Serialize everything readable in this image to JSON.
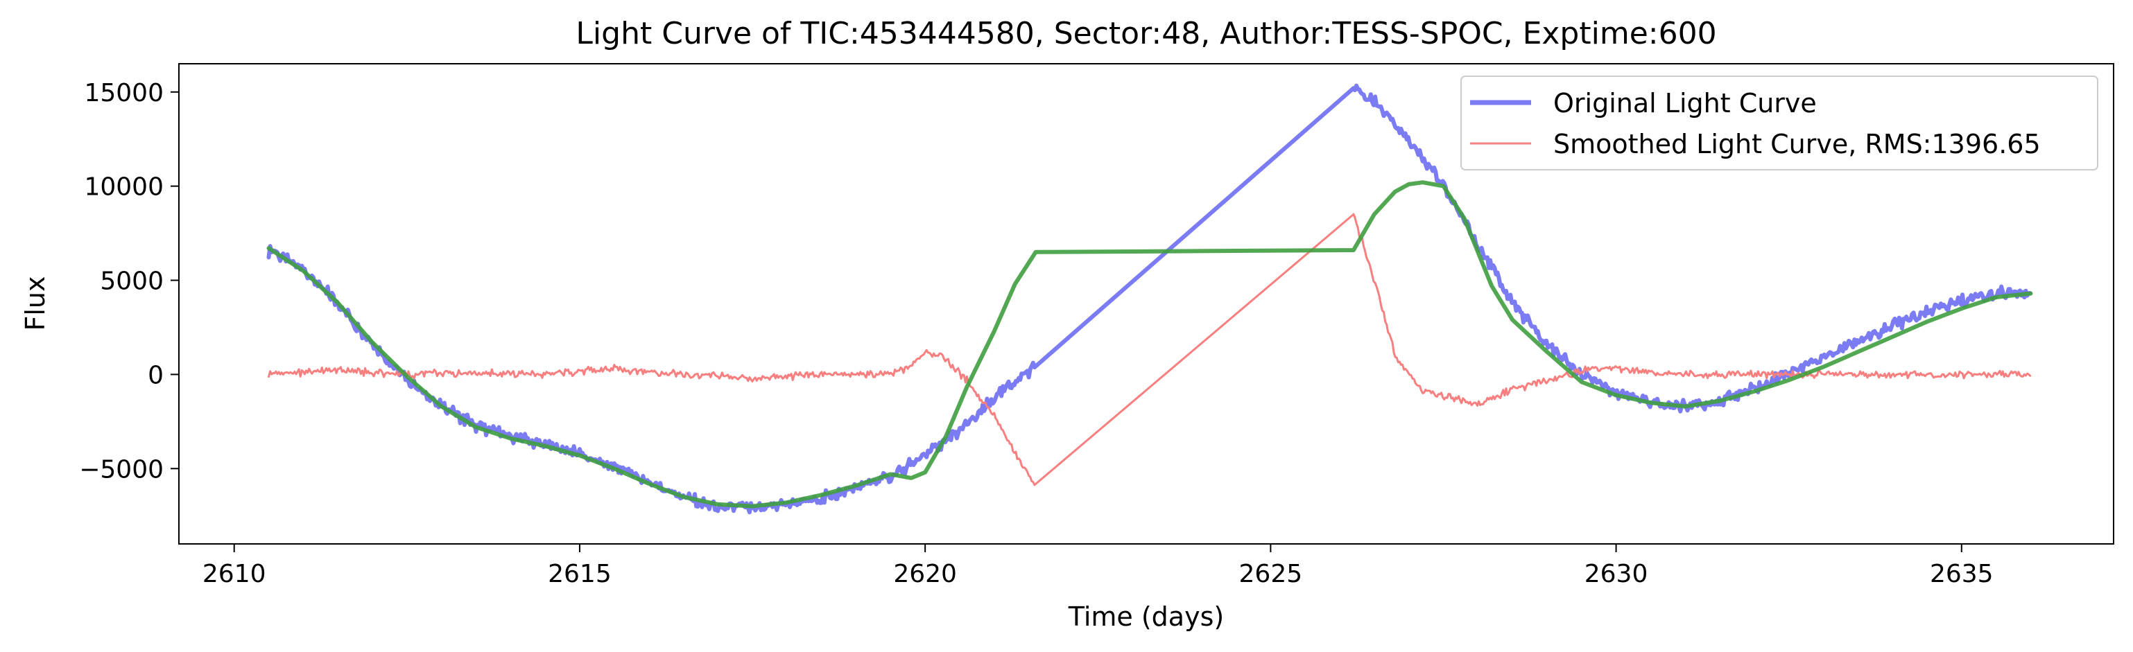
{
  "chart_data": {
    "type": "line",
    "title": "Light Curve of TIC:453444580, Sector:48, Author:TESS-SPOC, Exptime:600",
    "xlabel": "Time (days)",
    "ylabel": "Flux",
    "xlim": [
      2609.2,
      2637.2
    ],
    "ylim": [
      -9000,
      16500
    ],
    "grid": false,
    "legend_position": "top-right",
    "x_ticks": [
      2610,
      2615,
      2620,
      2625,
      2630,
      2635
    ],
    "x_tick_labels": [
      "2610",
      "2615",
      "2620",
      "2625",
      "2630",
      "2635"
    ],
    "y_ticks": [
      -5000,
      0,
      5000,
      10000,
      15000
    ],
    "y_tick_labels": [
      "−5000",
      "0",
      "5000",
      "10000",
      "15000"
    ],
    "series": [
      {
        "name": "Original Light Curve",
        "color": "#7b7bf3",
        "noise": 380,
        "x": [
          2610.5,
          2611.0,
          2611.5,
          2612.0,
          2612.5,
          2613.0,
          2613.5,
          2614.0,
          2614.5,
          2615.0,
          2615.5,
          2616.0,
          2616.5,
          2617.0,
          2617.5,
          2618.0,
          2618.5,
          2619.0,
          2619.5,
          2619.8,
          2620.0,
          2620.5,
          2621.0,
          2621.6,
          2626.2,
          2626.5,
          2627.0,
          2627.5,
          2628.0,
          2628.5,
          2629.0,
          2629.5,
          2630.0,
          2630.5,
          2631.0,
          2631.5,
          2632.0,
          2632.5,
          2633.0,
          2633.5,
          2634.0,
          2634.5,
          2635.0,
          2635.5,
          2636.0
        ],
        "y": [
          6600,
          5600,
          3800,
          1600,
          -300,
          -1700,
          -2700,
          -3300,
          -3700,
          -4200,
          -4900,
          -5700,
          -6500,
          -7100,
          -7100,
          -6900,
          -6600,
          -6000,
          -5400,
          -4800,
          -4300,
          -3000,
          -1300,
          500,
          15200,
          14500,
          12500,
          10000,
          6900,
          3800,
          1600,
          0,
          -1000,
          -1500,
          -1700,
          -1400,
          -700,
          100,
          900,
          1800,
          2600,
          3300,
          3900,
          4300,
          4400
        ]
      },
      {
        "name": "Smoothed Light Curve, RMS:1396.65",
        "color": "#f77f7f",
        "noise": 230,
        "x": [
          2610.5,
          2611.5,
          2612.5,
          2613.5,
          2614.5,
          2615.5,
          2616.5,
          2617.5,
          2618.5,
          2619.5,
          2619.8,
          2620.0,
          2620.3,
          2620.6,
          2621.0,
          2621.3,
          2621.6,
          2626.2,
          2626.5,
          2626.8,
          2627.2,
          2627.6,
          2628.0,
          2628.5,
          2629.0,
          2629.5,
          2630.0,
          2630.5,
          2631.0,
          2632.0,
          2633.0,
          2634.0,
          2635.0,
          2636.0
        ],
        "y": [
          0,
          200,
          0,
          100,
          0,
          300,
          0,
          -200,
          0,
          0,
          400,
          1300,
          800,
          -300,
          -2200,
          -4200,
          -5900,
          8500,
          5000,
          1000,
          -900,
          -1200,
          -1600,
          -800,
          -300,
          200,
          300,
          100,
          0,
          0,
          0,
          0,
          0,
          0
        ]
      },
      {
        "color": "#3f9f3f",
        "noise": 0,
        "x": [
          2610.5,
          2611.0,
          2611.5,
          2612.0,
          2612.5,
          2613.0,
          2613.5,
          2614.0,
          2614.5,
          2615.0,
          2615.5,
          2616.0,
          2616.5,
          2617.0,
          2617.5,
          2618.0,
          2618.5,
          2619.0,
          2619.5,
          2619.8,
          2620.0,
          2620.3,
          2620.6,
          2621.0,
          2621.3,
          2621.6,
          2626.2,
          2626.5,
          2626.8,
          2627.0,
          2627.2,
          2627.5,
          2627.8,
          2628.2,
          2628.5,
          2629.0,
          2629.5,
          2630.0,
          2630.5,
          2631.0,
          2631.5,
          2632.0,
          2632.5,
          2633.0,
          2633.5,
          2634.0,
          2634.5,
          2635.0,
          2635.5,
          2636.0
        ],
        "y": [
          6700,
          5500,
          3800,
          1700,
          -100,
          -1700,
          -2800,
          -3400,
          -3800,
          -4300,
          -5000,
          -5800,
          -6500,
          -6900,
          -7000,
          -6800,
          -6400,
          -5900,
          -5300,
          -5500,
          -5200,
          -3300,
          -700,
          2300,
          4800,
          6500,
          6600,
          8500,
          9700,
          10100,
          10200,
          10000,
          8300,
          4700,
          2900,
          1200,
          -400,
          -1100,
          -1500,
          -1700,
          -1400,
          -900,
          -300,
          400,
          1200,
          2000,
          2800,
          3500,
          4100,
          4300
        ]
      }
    ]
  }
}
